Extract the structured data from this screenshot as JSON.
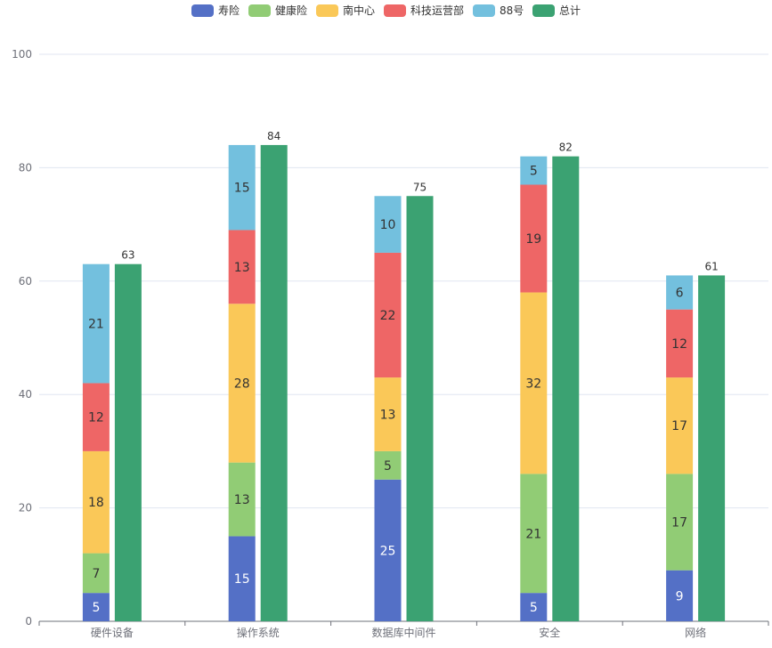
{
  "chart_data": {
    "type": "bar",
    "categories": [
      "硬件设备",
      "操作系统",
      "数据库中间件",
      "安全",
      "网络"
    ],
    "ylim": [
      0,
      100
    ],
    "yticks": [
      0,
      20,
      40,
      60,
      80,
      100
    ],
    "grid": true,
    "legend_position": "top-center",
    "stacked_series": [
      {
        "name": "寿险",
        "color": "#5470c6",
        "label_color": "#ffffff",
        "values": [
          5,
          15,
          25,
          5,
          9
        ]
      },
      {
        "name": "健康险",
        "color": "#91cc75",
        "label_color": "#333333",
        "values": [
          7,
          13,
          5,
          21,
          17
        ]
      },
      {
        "name": "南中心",
        "color": "#fac858",
        "label_color": "#333333",
        "values": [
          18,
          28,
          13,
          32,
          17
        ]
      },
      {
        "name": "科技运营部",
        "color": "#ee6666",
        "label_color": "#333333",
        "values": [
          12,
          13,
          22,
          19,
          12
        ]
      },
      {
        "name": "88号",
        "color": "#73c0de",
        "label_color": "#333333",
        "values": [
          21,
          15,
          10,
          5,
          6
        ]
      }
    ],
    "total_series": {
      "name": "总计",
      "color": "#3ba272",
      "values": [
        63,
        84,
        75,
        82,
        61
      ]
    }
  }
}
